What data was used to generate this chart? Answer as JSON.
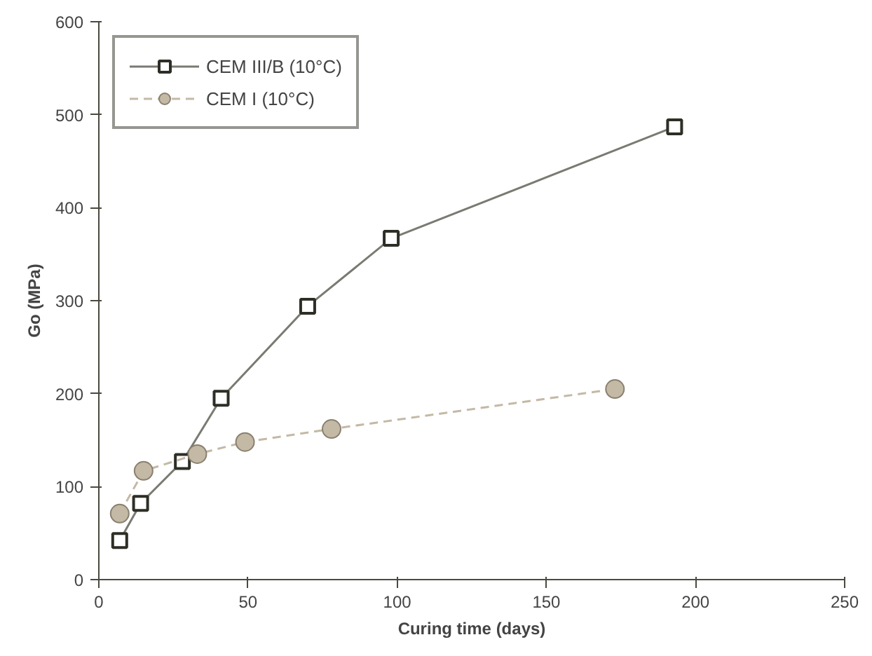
{
  "chart_data": {
    "type": "line",
    "xlabel": "Curing time (days)",
    "ylabel": "Go (MPa)",
    "xlim": [
      0,
      250
    ],
    "xticks": [
      0,
      50,
      100,
      150,
      200,
      250
    ],
    "ylim": [
      0,
      600
    ],
    "yticks": [
      0,
      100,
      200,
      300,
      400,
      500,
      600
    ],
    "grid": false,
    "legend": "top left",
    "series": [
      {
        "name": "CEM III/B (10°C)",
        "color": "#7a7a72",
        "marker": "square",
        "line_style": "solid",
        "x": [
          7,
          14,
          28,
          41,
          70,
          98,
          193
        ],
        "values": [
          42,
          82,
          127,
          195,
          294,
          367,
          487
        ]
      },
      {
        "name": "CEM I (10°C)",
        "color": "#c4b9a5",
        "marker": "circle",
        "line_style": "dashed",
        "x": [
          7,
          15,
          33,
          49,
          78,
          173
        ],
        "values": [
          71,
          117,
          135,
          148,
          162,
          205
        ]
      }
    ]
  }
}
